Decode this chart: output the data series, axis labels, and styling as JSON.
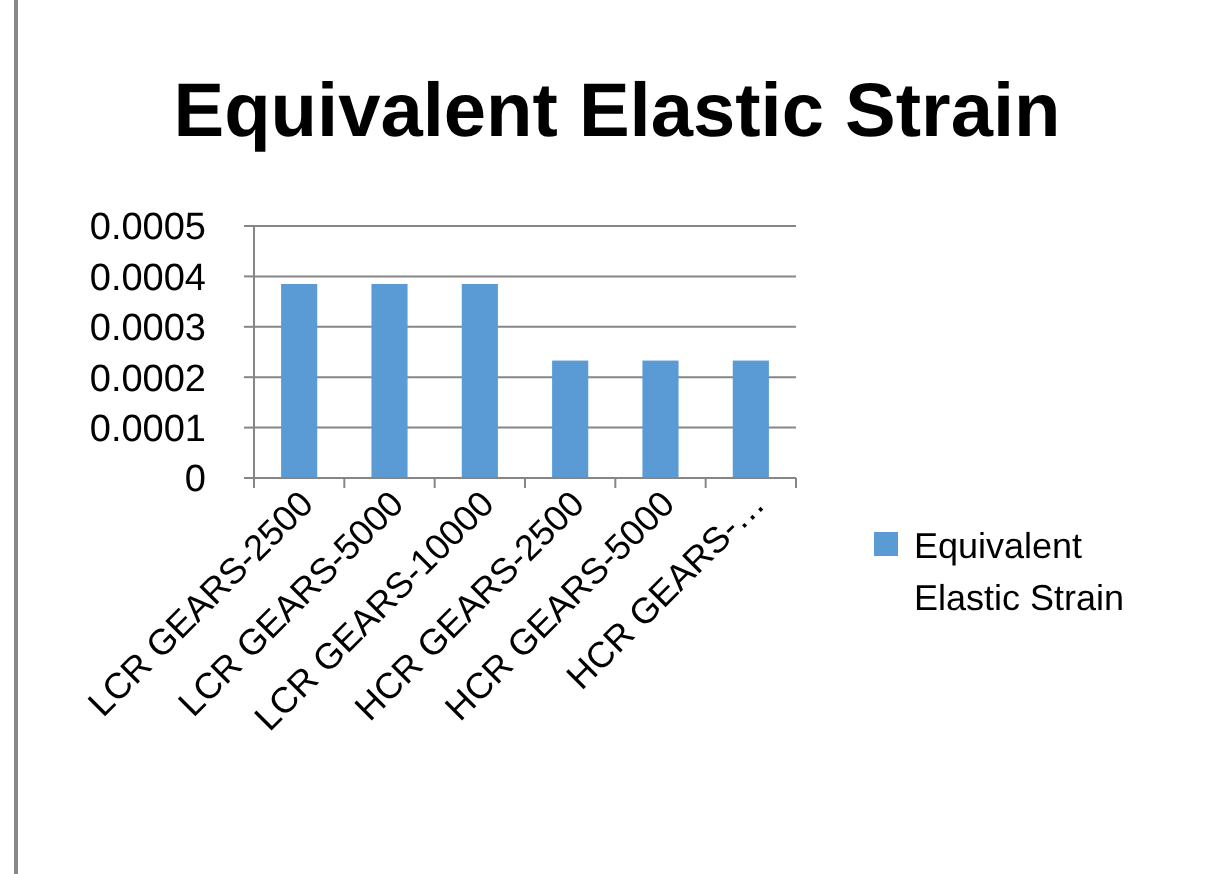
{
  "chart_data": {
    "type": "bar",
    "title": "Equivalent Elastic Strain",
    "categories": [
      "LCR GEARS-2500",
      "LCR GEARS-5000",
      "LCR GEARS-10000",
      "HCR GEARS-2500",
      "HCR GEARS-5000",
      "HCR GEARS-…"
    ],
    "series": [
      {
        "name": "Equivalent Elastic Strain",
        "color": "#5b9bd5",
        "values": [
          0.000385,
          0.000385,
          0.000385,
          0.000233,
          0.000233,
          0.000233
        ]
      }
    ],
    "ylim": [
      0,
      0.0005
    ],
    "yticks": [
      0,
      0.0001,
      0.0002,
      0.0003,
      0.0004,
      0.0005
    ],
    "grid": "y",
    "legend": "right"
  }
}
